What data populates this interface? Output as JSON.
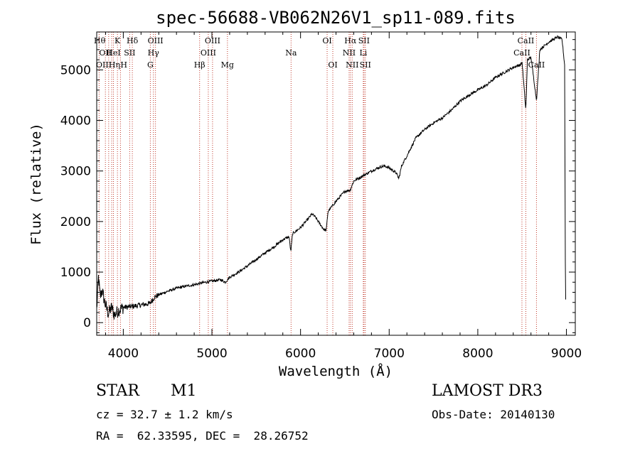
{
  "chart_data": {
    "type": "line",
    "title": "spec-56688-VB062N26V1_sp11-089.fits",
    "xlabel": "Wavelength (Å)",
    "ylabel": "Flux (relative)",
    "xlim": [
      3700,
      9100
    ],
    "ylim": [
      -250,
      5750
    ],
    "xticks": [
      4000,
      5000,
      6000,
      7000,
      8000,
      9000
    ],
    "yticks": [
      0,
      1000,
      2000,
      3000,
      4000,
      5000
    ],
    "spectrum_anchors": [
      [
        3700,
        250
      ],
      [
        3720,
        900
      ],
      [
        3740,
        500
      ],
      [
        3760,
        650
      ],
      [
        3790,
        400
      ],
      [
        3830,
        180
      ],
      [
        3870,
        300
      ],
      [
        3900,
        150
      ],
      [
        3950,
        250
      ],
      [
        4000,
        300
      ],
      [
        4100,
        320
      ],
      [
        4200,
        350
      ],
      [
        4300,
        380
      ],
      [
        4350,
        500
      ],
      [
        4400,
        550
      ],
      [
        4500,
        620
      ],
      [
        4600,
        680
      ],
      [
        4700,
        720
      ],
      [
        4800,
        750
      ],
      [
        4900,
        790
      ],
      [
        5000,
        820
      ],
      [
        5100,
        850
      ],
      [
        5150,
        800
      ],
      [
        5200,
        900
      ],
      [
        5300,
        1000
      ],
      [
        5400,
        1120
      ],
      [
        5500,
        1250
      ],
      [
        5600,
        1380
      ],
      [
        5700,
        1500
      ],
      [
        5800,
        1640
      ],
      [
        5870,
        1700
      ],
      [
        5890,
        1400
      ],
      [
        5910,
        1760
      ],
      [
        6000,
        1880
      ],
      [
        6080,
        2040
      ],
      [
        6130,
        2150
      ],
      [
        6170,
        2080
      ],
      [
        6220,
        1950
      ],
      [
        6260,
        1850
      ],
      [
        6290,
        1820
      ],
      [
        6310,
        2200
      ],
      [
        6400,
        2400
      ],
      [
        6500,
        2600
      ],
      [
        6560,
        2620
      ],
      [
        6600,
        2800
      ],
      [
        6700,
        2900
      ],
      [
        6800,
        3000
      ],
      [
        6900,
        3080
      ],
      [
        6950,
        3100
      ],
      [
        7000,
        3060
      ],
      [
        7050,
        3000
      ],
      [
        7080,
        2960
      ],
      [
        7110,
        2850
      ],
      [
        7140,
        3100
      ],
      [
        7200,
        3300
      ],
      [
        7300,
        3650
      ],
      [
        7400,
        3820
      ],
      [
        7500,
        3950
      ],
      [
        7600,
        4050
      ],
      [
        7700,
        4200
      ],
      [
        7800,
        4380
      ],
      [
        7900,
        4500
      ],
      [
        8000,
        4600
      ],
      [
        8100,
        4700
      ],
      [
        8200,
        4850
      ],
      [
        8300,
        4950
      ],
      [
        8400,
        5050
      ],
      [
        8480,
        5100
      ],
      [
        8500,
        5150
      ],
      [
        8542,
        4200
      ],
      [
        8560,
        5200
      ],
      [
        8600,
        5250
      ],
      [
        8662,
        4400
      ],
      [
        8700,
        5400
      ],
      [
        8800,
        5550
      ],
      [
        8900,
        5650
      ],
      [
        8950,
        5600
      ],
      [
        8980,
        5100
      ],
      [
        8990,
        200
      ],
      [
        8995,
        900
      ]
    ],
    "lines": [
      {
        "name": "Hθ",
        "wave": 3798,
        "row": 1,
        "anchor": "end"
      },
      {
        "name": "OII",
        "wave": 3727,
        "row": 2,
        "anchor": "start"
      },
      {
        "name": "OIII",
        "wave": 3869,
        "row": 3,
        "anchor": "end"
      },
      {
        "name": "K",
        "wave": 3934,
        "row": 1,
        "anchor": "middle"
      },
      {
        "name": "HeI",
        "wave": 3889,
        "row": 2,
        "anchor": "middle"
      },
      {
        "name": "Hη",
        "wave": 3835,
        "row": 3,
        "anchor": "start"
      },
      {
        "name": "SII",
        "wave": 4072,
        "row": 2,
        "anchor": "middle"
      },
      {
        "name": "H",
        "wave": 3968,
        "row": 3,
        "anchor": "start"
      },
      {
        "name": "Hδ",
        "wave": 4102,
        "row": 1,
        "anchor": "middle"
      },
      {
        "name": "OIII",
        "wave": 4363,
        "row": 1,
        "anchor": "middle"
      },
      {
        "name": "Hγ",
        "wave": 4340,
        "row": 2,
        "anchor": "middle"
      },
      {
        "name": "G",
        "wave": 4305,
        "row": 3,
        "anchor": "middle"
      },
      {
        "name": "Hβ",
        "wave": 4861,
        "row": 3,
        "anchor": "middle"
      },
      {
        "name": "OIII",
        "wave": 5007,
        "row": 1,
        "anchor": "middle"
      },
      {
        "name": "OIII",
        "wave": 4959,
        "row": 2,
        "anchor": "middle"
      },
      {
        "name": "Mg",
        "wave": 5175,
        "row": 3,
        "anchor": "middle"
      },
      {
        "name": "Na",
        "wave": 5893,
        "row": 2,
        "anchor": "middle"
      },
      {
        "name": "OI",
        "wave": 6300,
        "row": 1,
        "anchor": "middle"
      },
      {
        "name": "OI",
        "wave": 6364,
        "row": 3,
        "anchor": "middle"
      },
      {
        "name": "Hα",
        "wave": 6563,
        "row": 1,
        "anchor": "middle"
      },
      {
        "name": "NII",
        "wave": 6548,
        "row": 2,
        "anchor": "middle"
      },
      {
        "name": "NII",
        "wave": 6583,
        "row": 3,
        "anchor": "middle"
      },
      {
        "name": "SII",
        "wave": 6716,
        "row": 1,
        "anchor": "middle"
      },
      {
        "name": "Li",
        "wave": 6708,
        "row": 2,
        "anchor": "middle"
      },
      {
        "name": "SII",
        "wave": 6731,
        "row": 3,
        "anchor": "middle"
      },
      {
        "name": "CaII",
        "wave": 8542,
        "row": 1,
        "anchor": "middle"
      },
      {
        "name": "CaII",
        "wave": 8498,
        "row": 2,
        "anchor": "middle"
      },
      {
        "name": "CaII",
        "wave": 8662,
        "row": 3,
        "anchor": "middle"
      }
    ]
  },
  "info": {
    "class_label": "STAR",
    "subclass": "M1",
    "survey": "LAMOST DR3",
    "redshift": "cz = 32.7 ± 1.2 km/s",
    "obs_date": "Obs-Date: 20140130",
    "coords": "RA =  62.33595, DEC =  28.26752"
  }
}
